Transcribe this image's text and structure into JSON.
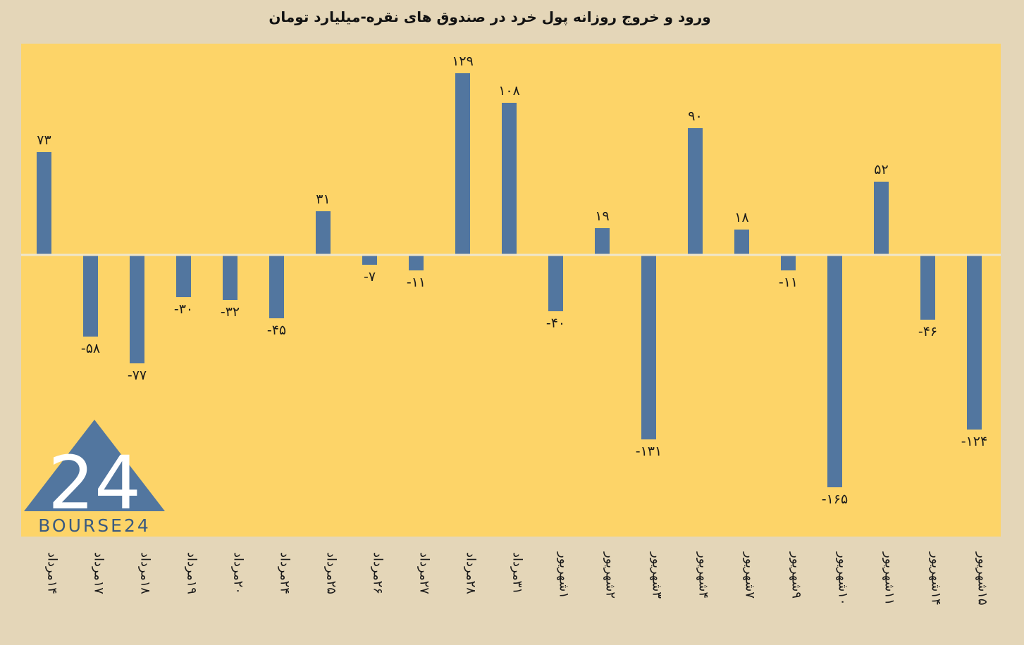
{
  "chart_data": {
    "type": "bar",
    "title": "ورود و خروج روزانه پول خرد در صندوق های نقره-میلیارد تومان",
    "categories": [
      "۱۴مرداد",
      "۱۷مرداد",
      "۱۸مرداد",
      "۱۹مرداد",
      "۲۰مرداد",
      "۲۴مرداد",
      "۲۵مرداد",
      "۲۶مرداد",
      "۲۷مرداد",
      "۲۸مرداد",
      "۳۱مرداد",
      "۱شهریور",
      "۲شهریور",
      "۳شهریور",
      "۴شهریور",
      "۷شهریور",
      "۹شهریور",
      "۱۰شهریور",
      "۱۱شهریور",
      "۱۴شهریور",
      "۱۵شهریور"
    ],
    "values": [
      73,
      -58,
      -77,
      -30,
      -32,
      -45,
      31,
      -7,
      -11,
      129,
      108,
      -40,
      19,
      -131,
      90,
      18,
      -11,
      -165,
      52,
      -46,
      -124
    ],
    "value_labels": [
      "۷۳",
      "-۵۸",
      "-۷۷",
      "-۳۰",
      "-۳۲",
      "-۴۵",
      "۳۱",
      "-۷",
      "-۱۱",
      "۱۲۹",
      "۱۰۸",
      "-۴۰",
      "۱۹",
      "-۱۳۱",
      "۹۰",
      "۱۸",
      "-۱۱",
      "-۱۶۵",
      "۵۲",
      "-۴۶",
      "-۱۲۴"
    ],
    "xlabel": "",
    "ylabel": "",
    "grid": false,
    "legend": "none"
  },
  "logo": {
    "text": "BOURSE24",
    "number": "24"
  },
  "colors": {
    "bar": "#52769f",
    "plot_background": "#fdd468",
    "page_background": "#e4d6b8",
    "zero_line": "#efe6cc"
  }
}
